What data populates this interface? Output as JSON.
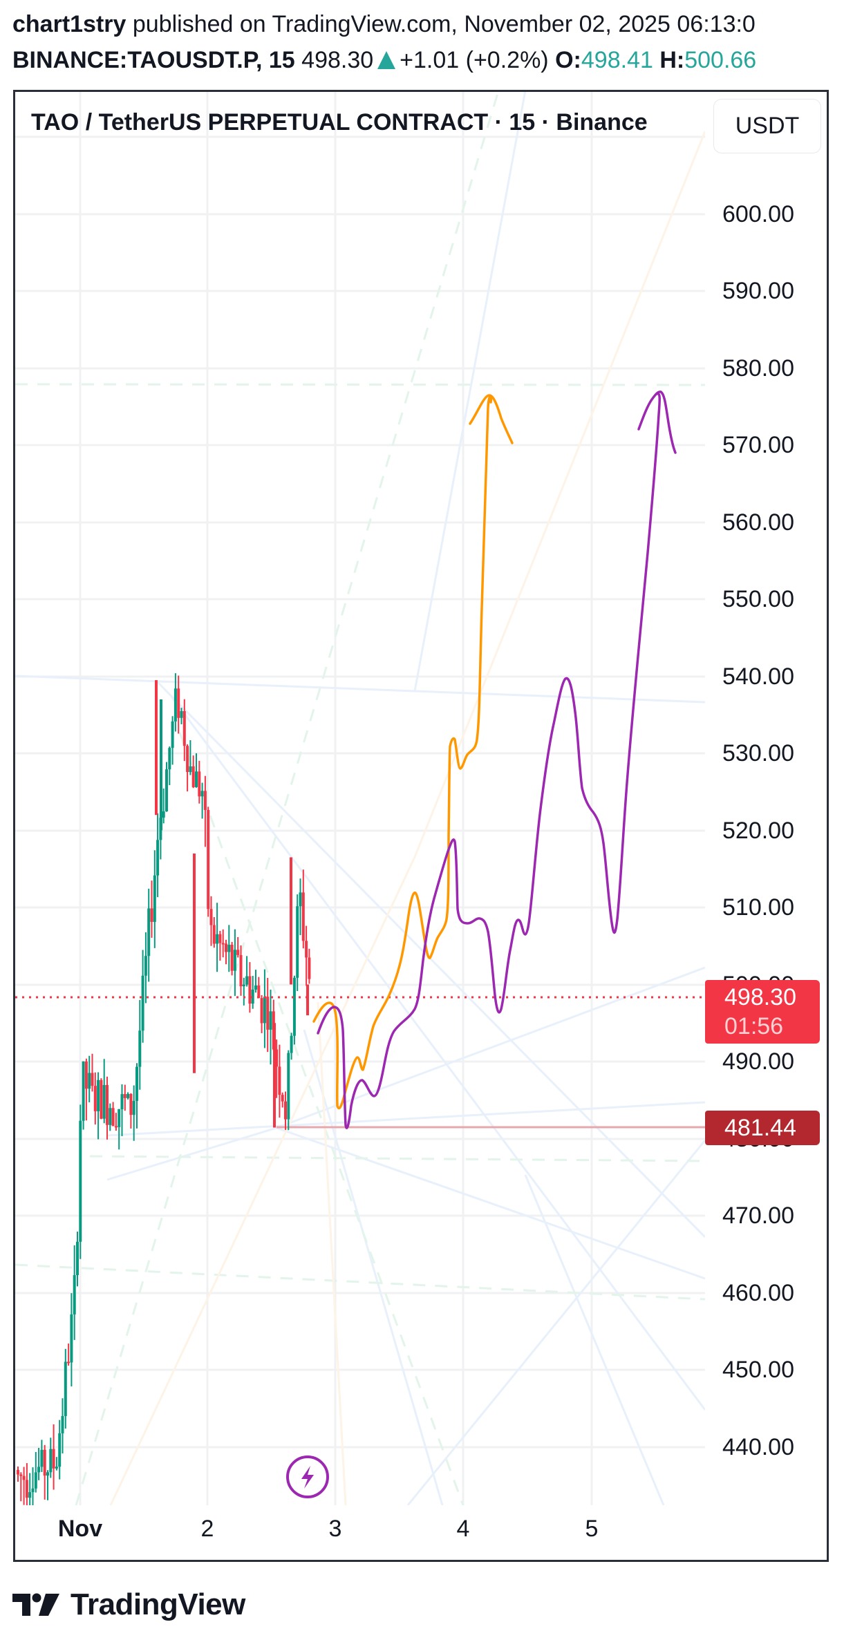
{
  "header": {
    "author": "chart1stry",
    "published_text": " published on TradingView.com, November 02, 2025 06:13:0",
    "symbol": "BINANCE:TAOUSDT.P, 15",
    "last_price": "498.30",
    "change": "+1.01 (+0.2%)",
    "open_label": "O:",
    "open_value": "498.41",
    "high_label": "H:",
    "high_value": "500.66"
  },
  "chart": {
    "title": "TAO / TetherUS PERPETUAL CONTRACT · 15 · Binance",
    "currency_button": "USDT",
    "last_price_tag": "498.30",
    "countdown": "01:56",
    "low_line_tag": "481.44",
    "colors": {
      "up": "#089981",
      "down": "#f23645",
      "projection_a": "#ff9800",
      "projection_b": "#9c27b0",
      "last_price_line": "#f23645",
      "low_line": "#e6a8ad",
      "grid": "#f0f1f3"
    }
  },
  "price_axis": {
    "labels": [
      "600.00",
      "590.00",
      "580.00",
      "570.00",
      "560.00",
      "550.00",
      "540.00",
      "530.00",
      "520.00",
      "510.00",
      "500.00",
      "490.00",
      "480.00",
      "470.00",
      "460.00",
      "450.00",
      "440.00"
    ]
  },
  "time_axis": {
    "labels": [
      "Nov",
      "2",
      "3",
      "4",
      "5"
    ]
  },
  "icons": {
    "flash": "lightning-bolt-icon",
    "brand": "tradingview-logo-icon"
  },
  "footer": {
    "brand": "TradingView"
  },
  "chart_data": {
    "type": "candlestick",
    "title": "TAO / TetherUS PERPETUAL CONTRACT · 15 · Binance",
    "symbol": "BINANCE:TAOUSDT.P",
    "interval": "15",
    "xlabel": "",
    "ylabel": "USDT",
    "ylim": [
      431,
      614
    ],
    "x_ticks": [
      "Nov",
      "2",
      "3",
      "4",
      "5"
    ],
    "y_ticks": [
      440,
      450,
      460,
      470,
      480,
      490,
      500,
      510,
      520,
      530,
      540,
      550,
      560,
      570,
      580,
      590,
      600
    ],
    "grid": true,
    "last_price": 498.3,
    "last_change": 1.01,
    "last_change_pct": 0.2,
    "open": 498.41,
    "high": 500.66,
    "horizontal_line": 481.44,
    "approx_close_path": {
      "x_day": [
        0.0,
        0.5,
        0.8,
        0.95,
        1.0,
        1.1,
        1.4,
        1.6,
        1.75,
        1.85,
        1.95,
        2.0,
        2.2,
        2.45,
        2.55,
        2.6,
        2.7,
        2.8
      ],
      "close": [
        437,
        436,
        438,
        460,
        488,
        485,
        484,
        520,
        538,
        528,
        525,
        507,
        502,
        497,
        488,
        483,
        512,
        498
      ]
    },
    "projections": [
      {
        "name": "orange path",
        "color": "#ff9800",
        "points_day_price": [
          [
            2.85,
            499
          ],
          [
            2.95,
            500
          ],
          [
            3.02,
            488
          ],
          [
            3.2,
            494
          ],
          [
            3.5,
            508
          ],
          [
            3.65,
            513
          ],
          [
            3.75,
            507
          ],
          [
            3.85,
            512
          ],
          [
            3.9,
            523
          ],
          [
            3.95,
            535
          ],
          [
            4.0,
            527
          ],
          [
            4.1,
            530
          ],
          [
            4.2,
            578
          ]
        ],
        "target": 577
      },
      {
        "name": "purple path",
        "color": "#9c27b0",
        "points_day_price": [
          [
            2.9,
            497
          ],
          [
            3.0,
            500
          ],
          [
            3.1,
            486
          ],
          [
            3.25,
            493
          ],
          [
            3.4,
            490
          ],
          [
            3.6,
            497
          ],
          [
            3.85,
            511
          ],
          [
            3.95,
            522
          ],
          [
            4.0,
            511
          ],
          [
            4.15,
            510
          ],
          [
            4.25,
            499
          ],
          [
            4.45,
            511
          ],
          [
            4.5,
            510
          ],
          [
            4.85,
            540
          ],
          [
            5.0,
            523
          ],
          [
            5.2,
            509
          ],
          [
            5.5,
            577
          ]
        ],
        "target": 577
      }
    ]
  }
}
